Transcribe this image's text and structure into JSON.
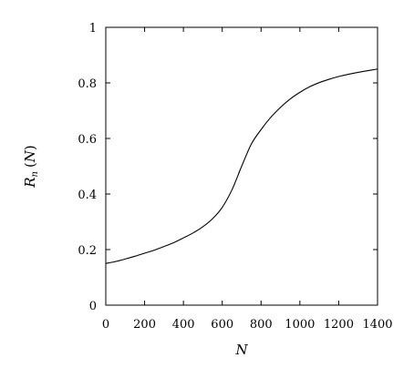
{
  "chart_data": {
    "type": "line",
    "xlabel": "N",
    "ylabel": {
      "main": "R",
      "sub": "n",
      "open": "(",
      "arg": "N",
      "close": ")"
    },
    "xlim": [
      0,
      1400
    ],
    "ylim": [
      0,
      1
    ],
    "xticks": [
      0,
      200,
      400,
      600,
      800,
      1000,
      1200,
      1400
    ],
    "yticks": [
      0,
      0.2,
      0.4,
      0.6,
      0.8,
      1
    ],
    "ytick_labels": [
      "0",
      "0.2",
      "0.4",
      "0.6",
      "0.8",
      "1"
    ],
    "grid": false,
    "series": [
      {
        "color": "#000000",
        "x": [
          0,
          50,
          100,
          150,
          200,
          250,
          300,
          350,
          400,
          450,
          500,
          550,
          600,
          650,
          700,
          750,
          800,
          850,
          900,
          950,
          1000,
          1050,
          1100,
          1150,
          1200,
          1250,
          1300,
          1350,
          1400
        ],
        "y": [
          0.15,
          0.157,
          0.166,
          0.176,
          0.187,
          0.198,
          0.211,
          0.225,
          0.242,
          0.26,
          0.282,
          0.311,
          0.352,
          0.415,
          0.5,
          0.58,
          0.632,
          0.676,
          0.712,
          0.742,
          0.766,
          0.786,
          0.801,
          0.813,
          0.823,
          0.831,
          0.838,
          0.844,
          0.85
        ]
      }
    ]
  }
}
